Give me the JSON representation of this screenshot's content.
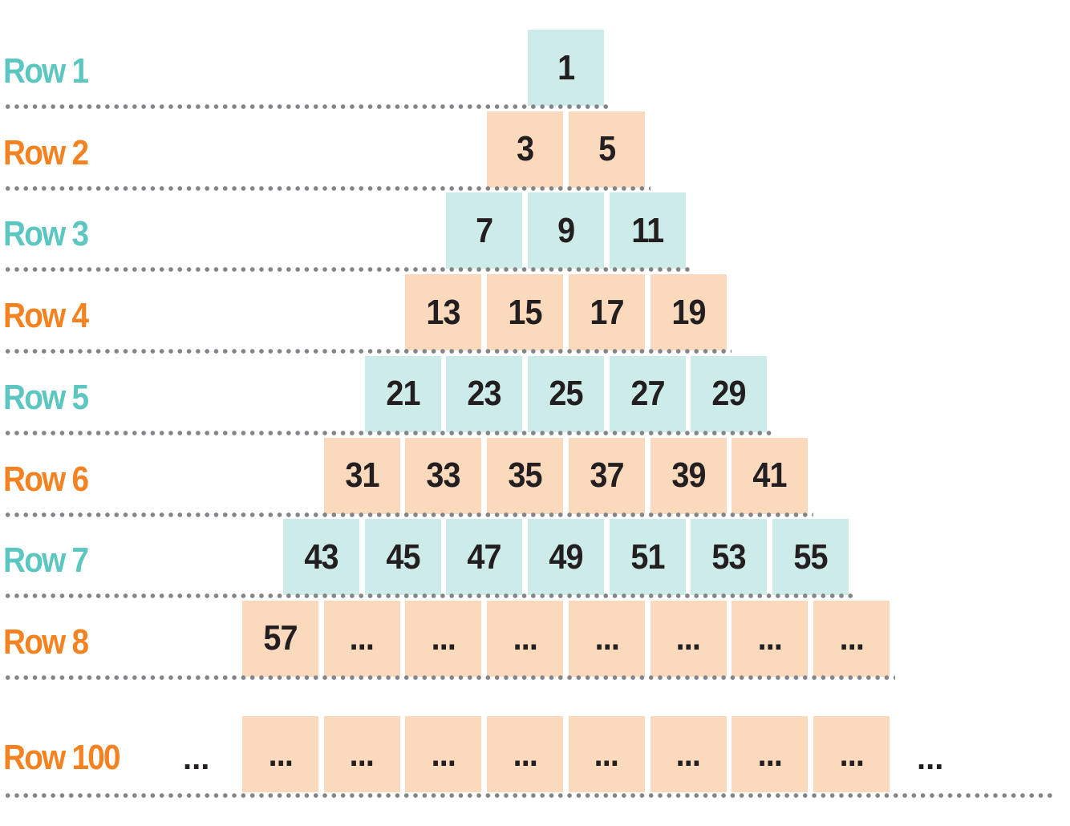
{
  "colors": {
    "odd_row_label": "#5cc6c0",
    "odd_row_box": "#cdece9",
    "even_row_label": "#f58220",
    "even_row_box": "#fbd9bc",
    "number_text": "#231f20",
    "dotted_line": "#848589"
  },
  "rows": [
    {
      "label": "Row 1",
      "values": [
        "1"
      ]
    },
    {
      "label": "Row 2",
      "values": [
        "3",
        "5"
      ]
    },
    {
      "label": "Row 3",
      "values": [
        "7",
        "9",
        "11"
      ]
    },
    {
      "label": "Row 4",
      "values": [
        "13",
        "15",
        "17",
        "19"
      ]
    },
    {
      "label": "Row 5",
      "values": [
        "21",
        "23",
        "25",
        "27",
        "29"
      ]
    },
    {
      "label": "Row 6",
      "values": [
        "31",
        "33",
        "35",
        "37",
        "39",
        "41"
      ]
    },
    {
      "label": "Row 7",
      "values": [
        "43",
        "45",
        "47",
        "49",
        "51",
        "53",
        "55"
      ]
    },
    {
      "label": "Row 8",
      "values": [
        "57",
        "...",
        "...",
        "...",
        "...",
        "...",
        "...",
        "..."
      ]
    }
  ],
  "last_row": {
    "label": "Row 100",
    "leading_ellipsis": "...",
    "values": [
      "...",
      "...",
      "...",
      "...",
      "...",
      "...",
      "...",
      "..."
    ],
    "trailing_ellipsis": "..."
  }
}
